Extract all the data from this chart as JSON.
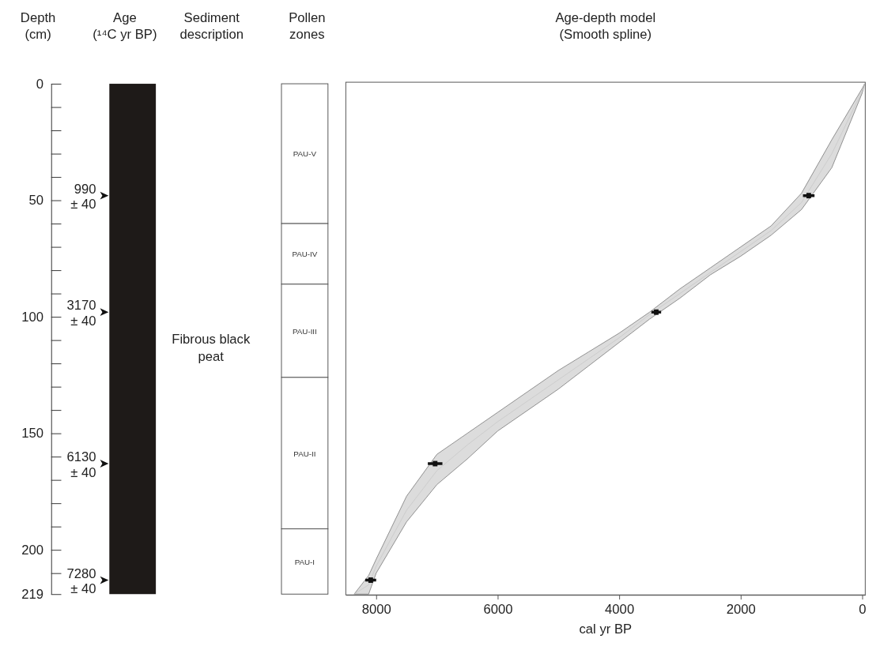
{
  "chart_data": [
    {
      "type": "bar",
      "stacked": true,
      "ylabel": "Depth\n(cm)",
      "ylim": [
        219,
        0
      ],
      "yticks": [
        0,
        {
          "value": 10,
          "label": null
        },
        {
          "value": 20,
          "label": null
        },
        {
          "value": 30,
          "label": null
        },
        {
          "value": 40,
          "label": null
        },
        50,
        {
          "value": 60,
          "label": null
        },
        {
          "value": 70,
          "label": null
        },
        {
          "value": 80,
          "label": null
        },
        {
          "value": 90,
          "label": null
        },
        100,
        {
          "value": 110,
          "label": null
        },
        {
          "value": 120,
          "label": null
        },
        {
          "value": 130,
          "label": null
        },
        {
          "value": 140,
          "label": null
        },
        150,
        {
          "value": 160,
          "label": null
        },
        {
          "value": 170,
          "label": null
        },
        {
          "value": 180,
          "label": null
        },
        {
          "value": 190,
          "label": null
        },
        200,
        {
          "value": 210,
          "label": null
        },
        219
      ],
      "categories": [
        null,
        null
      ],
      "series": [
        {
          "name": "Fibrous black peat",
          "color": "#1e1a18",
          "values": [
            219,
            null
          ]
        },
        {
          "name": "PAU-V",
          "color": "#ffffff",
          "values": [
            null,
            60
          ]
        },
        {
          "name": "PAU-IV",
          "color": "#ffffff",
          "values": [
            null,
            26
          ]
        },
        {
          "name": "PAU-III",
          "color": "#ffffff",
          "values": [
            null,
            40
          ]
        },
        {
          "name": "PAU-II",
          "color": "#ffffff",
          "values": [
            null,
            65
          ]
        },
        {
          "name": "PAU-I",
          "color": "#ffffff",
          "values": [
            null,
            28
          ]
        }
      ],
      "annotations": [
        "Age\n(¹⁴C yr BP)",
        "Sediment\ndescription",
        "Pollen\nzones",
        "990\n± 40",
        "3170\n± 40",
        "6130\n± 40",
        "7280\n± 40"
      ]
    },
    {
      "type": "line",
      "title": "Age-depth model\n(Smooth spline)",
      "xlabel": "cal yr BP",
      "xlim": [
        8500,
        -50
      ],
      "xticks": [
        8000,
        6000,
        4000,
        2000,
        0
      ],
      "ylim": [
        219,
        0
      ],
      "tick_labels": "x",
      "series": [
        {
          "color": "#c8c8c8",
          "x": [
            -40,
            0,
            500,
            1000,
            1500,
            2000,
            2500,
            3000,
            3500,
            4000,
            4500,
            5000,
            5500,
            6000,
            6500,
            7000,
            7500,
            8000,
            8124,
            8363
          ],
          "values": [
            0,
            3,
            30,
            51,
            63,
            72,
            81,
            90,
            99,
            109,
            118,
            127,
            136,
            145,
            155,
            166,
            183,
            207,
            215,
            219
          ],
          "lower": [
            0,
            2,
            24,
            47,
            61,
            70,
            79,
            88,
            98,
            107,
            115,
            123,
            132,
            141,
            150,
            159,
            177,
            204,
            211,
            219
          ],
          "upper": [
            0,
            4,
            36,
            54,
            65,
            74,
            82,
            92,
            101,
            111,
            121,
            131,
            140,
            149,
            161,
            172,
            188,
            210,
            219,
            219
          ]
        },
        {
          "type": "scatter",
          "marker": "square",
          "color": "#111111",
          "x": [
            880,
            3390,
            7030,
            8090
          ],
          "values": [
            48,
            98,
            163,
            213
          ],
          "xerrors": [
            95,
            80,
            120,
            90
          ]
        }
      ]
    }
  ]
}
